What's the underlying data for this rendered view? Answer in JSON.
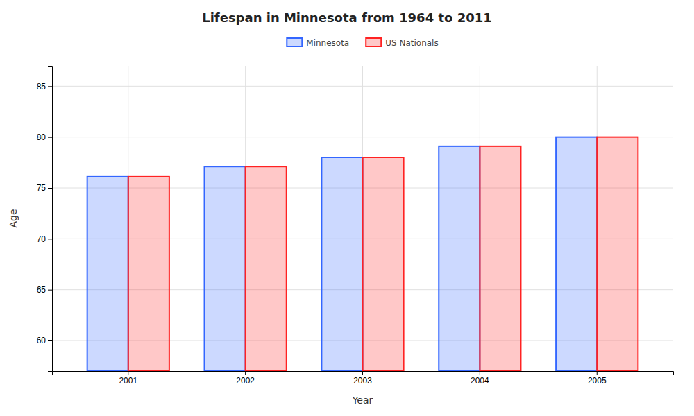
{
  "chart_data": {
    "type": "bar",
    "title": "Lifespan in Minnesota from 1964 to 2011",
    "xlabel": "Year",
    "ylabel": "Age",
    "categories": [
      "2001",
      "2002",
      "2003",
      "2004",
      "2005"
    ],
    "series": [
      {
        "name": "Minnesota",
        "color": "#3366ff",
        "values": [
          76.1,
          77.1,
          78.0,
          79.1,
          80.0
        ]
      },
      {
        "name": "US Nationals",
        "color": "#ff2222",
        "values": [
          76.1,
          77.1,
          78.0,
          79.1,
          80.0
        ]
      }
    ],
    "ylim": [
      57,
      87
    ],
    "yticks": [
      60,
      65,
      70,
      75,
      80,
      85
    ],
    "grid": true,
    "legend": "top"
  }
}
